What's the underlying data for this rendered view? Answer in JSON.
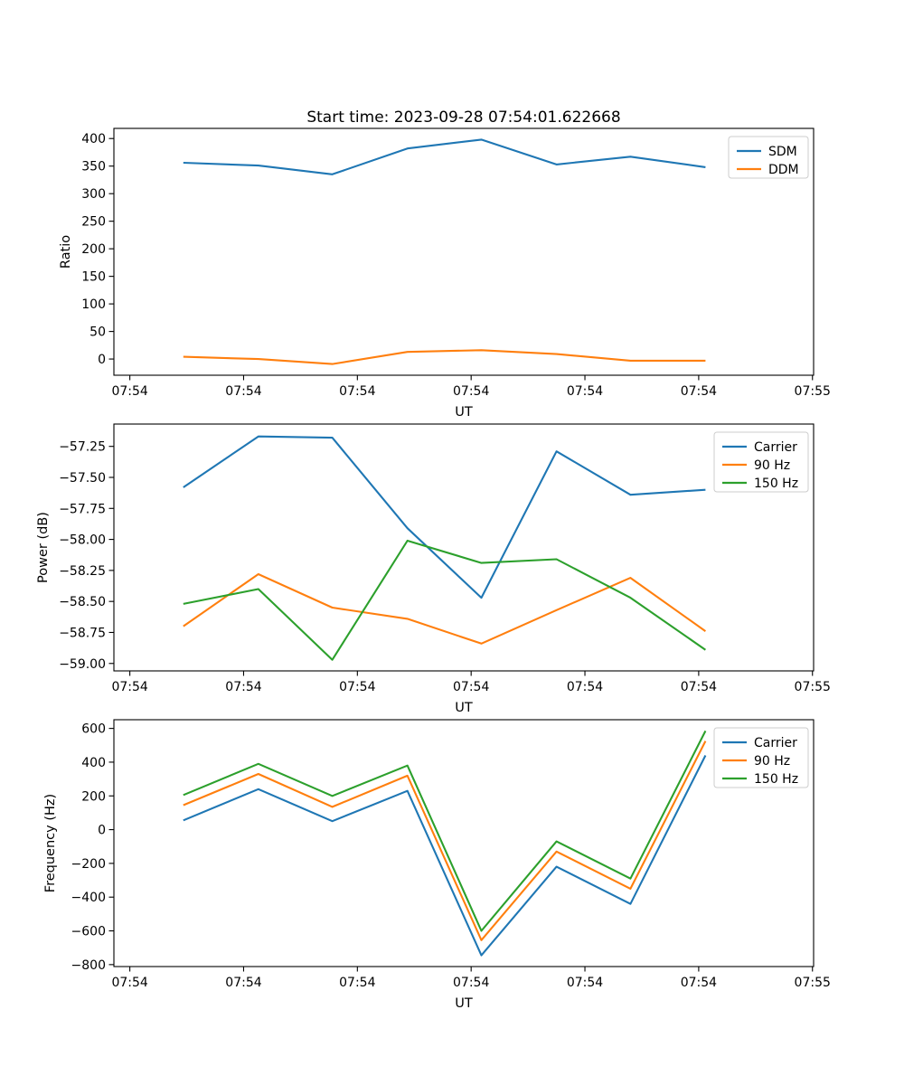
{
  "figure": {
    "title": "Start time: 2023-09-28 07:54:01.622668",
    "background_color": "#ffffff",
    "text_color": "#000000",
    "accent_colors": {
      "blue": "#1f77b4",
      "orange": "#ff7f0e",
      "green": "#2ca02c"
    }
  },
  "chart_data": [
    {
      "type": "line",
      "panel": "top",
      "xlabel": "UT",
      "ylabel": "Ratio",
      "x_unit": "seconds after 07:54:00",
      "x": [
        4.7,
        11.3,
        17.8,
        24.4,
        30.9,
        37.5,
        44.0,
        50.6
      ],
      "xlim": [
        -1.4,
        60.1
      ],
      "xtick_values": [
        0,
        10,
        20,
        30,
        40,
        50,
        60
      ],
      "xtick_labels": [
        "07:54",
        "07:54",
        "07:54",
        "07:54",
        "07:54",
        "07:54",
        "07:55"
      ],
      "ylim": [
        -29.4,
        418.4
      ],
      "ytick_values": [
        0,
        50,
        100,
        150,
        200,
        250,
        300,
        350,
        400
      ],
      "ytick_labels": [
        "0",
        "50",
        "100",
        "150",
        "200",
        "250",
        "300",
        "350",
        "400"
      ],
      "grid": false,
      "legend_location": "upper right",
      "series": [
        {
          "name": "SDM",
          "color": "#1f77b4",
          "values": [
            356,
            351,
            335,
            382,
            398,
            353,
            367,
            348
          ]
        },
        {
          "name": "DDM",
          "color": "#ff7f0e",
          "values": [
            4,
            0,
            -9,
            13,
            16,
            9,
            -3,
            -3
          ]
        }
      ]
    },
    {
      "type": "line",
      "panel": "middle",
      "xlabel": "UT",
      "ylabel": "Power (dB)",
      "x_unit": "seconds after 07:54:00",
      "x": [
        4.7,
        11.3,
        17.8,
        24.4,
        30.9,
        37.5,
        44.0,
        50.6
      ],
      "xlim": [
        -1.4,
        60.1
      ],
      "xtick_values": [
        0,
        10,
        20,
        30,
        40,
        50,
        60
      ],
      "xtick_labels": [
        "07:54",
        "07:54",
        "07:54",
        "07:54",
        "07:54",
        "07:54",
        "07:55"
      ],
      "ylim": [
        -59.06,
        -57.07
      ],
      "ytick_values": [
        -59.0,
        -58.75,
        -58.5,
        -58.25,
        -58.0,
        -57.75,
        -57.5,
        -57.25
      ],
      "ytick_labels": [
        "−59.00",
        "−58.75",
        "−58.50",
        "−58.25",
        "−58.00",
        "−57.75",
        "−57.50",
        "−57.25"
      ],
      "grid": false,
      "legend_location": "upper right",
      "series": [
        {
          "name": "Carrier",
          "color": "#1f77b4",
          "values": [
            -57.58,
            -57.17,
            -57.18,
            -57.91,
            -58.47,
            -57.29,
            -57.64,
            -57.6
          ]
        },
        {
          "name": "90 Hz",
          "color": "#ff7f0e",
          "values": [
            -58.7,
            -58.28,
            -58.55,
            -58.64,
            -58.84,
            -58.57,
            -58.31,
            -58.74
          ]
        },
        {
          "name": "150 Hz",
          "color": "#2ca02c",
          "values": [
            -58.52,
            -58.4,
            -58.97,
            -58.01,
            -58.19,
            -58.16,
            -58.47,
            -58.89
          ]
        }
      ]
    },
    {
      "type": "line",
      "panel": "bottom",
      "xlabel": "UT",
      "ylabel": "Frequency (Hz)",
      "x_unit": "seconds after 07:54:00",
      "x": [
        4.7,
        11.3,
        17.8,
        24.4,
        30.9,
        37.5,
        44.0,
        50.6
      ],
      "xlim": [
        -1.4,
        60.1
      ],
      "xtick_values": [
        0,
        10,
        20,
        30,
        40,
        50,
        60
      ],
      "xtick_labels": [
        "07:54",
        "07:54",
        "07:54",
        "07:54",
        "07:54",
        "07:54",
        "07:55"
      ],
      "ylim": [
        -811.5,
        651.5
      ],
      "ytick_values": [
        -800,
        -600,
        -400,
        -200,
        0,
        200,
        400,
        600
      ],
      "ytick_labels": [
        "−800",
        "−600",
        "−400",
        "−200",
        "0",
        "200",
        "400",
        "600"
      ],
      "grid": false,
      "legend_location": "upper right",
      "series": [
        {
          "name": "Carrier",
          "color": "#1f77b4",
          "values": [
            55,
            240,
            50,
            230,
            -745,
            -220,
            -440,
            440
          ]
        },
        {
          "name": "90 Hz",
          "color": "#ff7f0e",
          "values": [
            145,
            330,
            135,
            320,
            -655,
            -130,
            -350,
            525
          ]
        },
        {
          "name": "150 Hz",
          "color": "#2ca02c",
          "values": [
            205,
            390,
            200,
            380,
            -600,
            -70,
            -290,
            585
          ]
        }
      ]
    }
  ]
}
